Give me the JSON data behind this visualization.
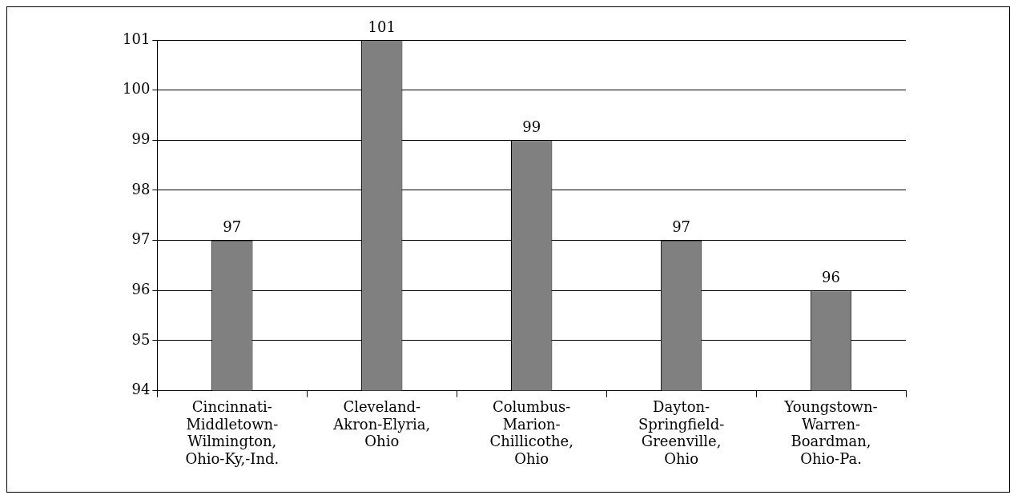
{
  "chart_data": {
    "type": "bar",
    "categories": [
      "Cincinnati-Middletown-Wilmington, Ohio-Ky,-Ind.",
      "Cleveland-Akron-Elyria, Ohio",
      "Columbus-Marion-Chillicothe, Ohio",
      "Dayton-Springfield-Greenville, Ohio",
      "Youngstown-Warren-Boardman, Ohio-Pa."
    ],
    "values": [
      97,
      101,
      99,
      97,
      96
    ],
    "color": "#808080",
    "ylim": [
      94,
      101
    ],
    "yticks": [
      94,
      95,
      96,
      97,
      98,
      99,
      100,
      101
    ],
    "grid": "y",
    "data_labels": true
  }
}
